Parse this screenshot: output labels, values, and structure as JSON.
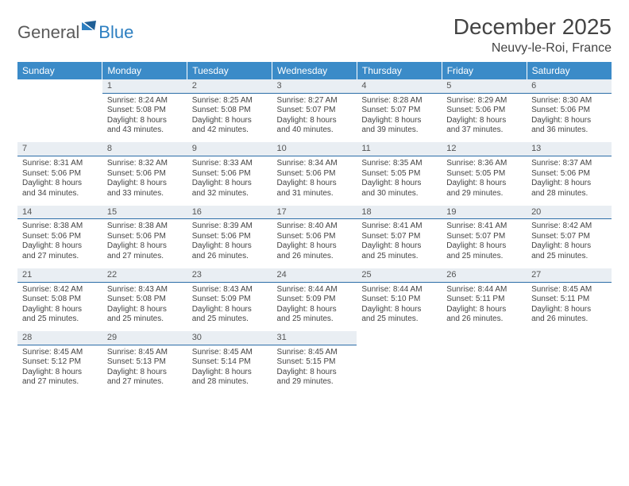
{
  "brand": {
    "general": "General",
    "blue": "Blue"
  },
  "title": "December 2025",
  "location": "Neuvy-le-Roi, France",
  "columns": [
    "Sunday",
    "Monday",
    "Tuesday",
    "Wednesday",
    "Thursday",
    "Friday",
    "Saturday"
  ],
  "colors": {
    "header_bg": "#3b8bc8",
    "daynum_bg": "#e9eef3",
    "daynum_border": "#2d6ea8",
    "brand_blue": "#2d7fc1"
  },
  "weeks": [
    [
      null,
      {
        "n": "1",
        "sr": "Sunrise: 8:24 AM",
        "ss": "Sunset: 5:08 PM",
        "d1": "Daylight: 8 hours",
        "d2": "and 43 minutes."
      },
      {
        "n": "2",
        "sr": "Sunrise: 8:25 AM",
        "ss": "Sunset: 5:08 PM",
        "d1": "Daylight: 8 hours",
        "d2": "and 42 minutes."
      },
      {
        "n": "3",
        "sr": "Sunrise: 8:27 AM",
        "ss": "Sunset: 5:07 PM",
        "d1": "Daylight: 8 hours",
        "d2": "and 40 minutes."
      },
      {
        "n": "4",
        "sr": "Sunrise: 8:28 AM",
        "ss": "Sunset: 5:07 PM",
        "d1": "Daylight: 8 hours",
        "d2": "and 39 minutes."
      },
      {
        "n": "5",
        "sr": "Sunrise: 8:29 AM",
        "ss": "Sunset: 5:06 PM",
        "d1": "Daylight: 8 hours",
        "d2": "and 37 minutes."
      },
      {
        "n": "6",
        "sr": "Sunrise: 8:30 AM",
        "ss": "Sunset: 5:06 PM",
        "d1": "Daylight: 8 hours",
        "d2": "and 36 minutes."
      }
    ],
    [
      {
        "n": "7",
        "sr": "Sunrise: 8:31 AM",
        "ss": "Sunset: 5:06 PM",
        "d1": "Daylight: 8 hours",
        "d2": "and 34 minutes."
      },
      {
        "n": "8",
        "sr": "Sunrise: 8:32 AM",
        "ss": "Sunset: 5:06 PM",
        "d1": "Daylight: 8 hours",
        "d2": "and 33 minutes."
      },
      {
        "n": "9",
        "sr": "Sunrise: 8:33 AM",
        "ss": "Sunset: 5:06 PM",
        "d1": "Daylight: 8 hours",
        "d2": "and 32 minutes."
      },
      {
        "n": "10",
        "sr": "Sunrise: 8:34 AM",
        "ss": "Sunset: 5:06 PM",
        "d1": "Daylight: 8 hours",
        "d2": "and 31 minutes."
      },
      {
        "n": "11",
        "sr": "Sunrise: 8:35 AM",
        "ss": "Sunset: 5:05 PM",
        "d1": "Daylight: 8 hours",
        "d2": "and 30 minutes."
      },
      {
        "n": "12",
        "sr": "Sunrise: 8:36 AM",
        "ss": "Sunset: 5:05 PM",
        "d1": "Daylight: 8 hours",
        "d2": "and 29 minutes."
      },
      {
        "n": "13",
        "sr": "Sunrise: 8:37 AM",
        "ss": "Sunset: 5:06 PM",
        "d1": "Daylight: 8 hours",
        "d2": "and 28 minutes."
      }
    ],
    [
      {
        "n": "14",
        "sr": "Sunrise: 8:38 AM",
        "ss": "Sunset: 5:06 PM",
        "d1": "Daylight: 8 hours",
        "d2": "and 27 minutes."
      },
      {
        "n": "15",
        "sr": "Sunrise: 8:38 AM",
        "ss": "Sunset: 5:06 PM",
        "d1": "Daylight: 8 hours",
        "d2": "and 27 minutes."
      },
      {
        "n": "16",
        "sr": "Sunrise: 8:39 AM",
        "ss": "Sunset: 5:06 PM",
        "d1": "Daylight: 8 hours",
        "d2": "and 26 minutes."
      },
      {
        "n": "17",
        "sr": "Sunrise: 8:40 AM",
        "ss": "Sunset: 5:06 PM",
        "d1": "Daylight: 8 hours",
        "d2": "and 26 minutes."
      },
      {
        "n": "18",
        "sr": "Sunrise: 8:41 AM",
        "ss": "Sunset: 5:07 PM",
        "d1": "Daylight: 8 hours",
        "d2": "and 25 minutes."
      },
      {
        "n": "19",
        "sr": "Sunrise: 8:41 AM",
        "ss": "Sunset: 5:07 PM",
        "d1": "Daylight: 8 hours",
        "d2": "and 25 minutes."
      },
      {
        "n": "20",
        "sr": "Sunrise: 8:42 AM",
        "ss": "Sunset: 5:07 PM",
        "d1": "Daylight: 8 hours",
        "d2": "and 25 minutes."
      }
    ],
    [
      {
        "n": "21",
        "sr": "Sunrise: 8:42 AM",
        "ss": "Sunset: 5:08 PM",
        "d1": "Daylight: 8 hours",
        "d2": "and 25 minutes."
      },
      {
        "n": "22",
        "sr": "Sunrise: 8:43 AM",
        "ss": "Sunset: 5:08 PM",
        "d1": "Daylight: 8 hours",
        "d2": "and 25 minutes."
      },
      {
        "n": "23",
        "sr": "Sunrise: 8:43 AM",
        "ss": "Sunset: 5:09 PM",
        "d1": "Daylight: 8 hours",
        "d2": "and 25 minutes."
      },
      {
        "n": "24",
        "sr": "Sunrise: 8:44 AM",
        "ss": "Sunset: 5:09 PM",
        "d1": "Daylight: 8 hours",
        "d2": "and 25 minutes."
      },
      {
        "n": "25",
        "sr": "Sunrise: 8:44 AM",
        "ss": "Sunset: 5:10 PM",
        "d1": "Daylight: 8 hours",
        "d2": "and 25 minutes."
      },
      {
        "n": "26",
        "sr": "Sunrise: 8:44 AM",
        "ss": "Sunset: 5:11 PM",
        "d1": "Daylight: 8 hours",
        "d2": "and 26 minutes."
      },
      {
        "n": "27",
        "sr": "Sunrise: 8:45 AM",
        "ss": "Sunset: 5:11 PM",
        "d1": "Daylight: 8 hours",
        "d2": "and 26 minutes."
      }
    ],
    [
      {
        "n": "28",
        "sr": "Sunrise: 8:45 AM",
        "ss": "Sunset: 5:12 PM",
        "d1": "Daylight: 8 hours",
        "d2": "and 27 minutes."
      },
      {
        "n": "29",
        "sr": "Sunrise: 8:45 AM",
        "ss": "Sunset: 5:13 PM",
        "d1": "Daylight: 8 hours",
        "d2": "and 27 minutes."
      },
      {
        "n": "30",
        "sr": "Sunrise: 8:45 AM",
        "ss": "Sunset: 5:14 PM",
        "d1": "Daylight: 8 hours",
        "d2": "and 28 minutes."
      },
      {
        "n": "31",
        "sr": "Sunrise: 8:45 AM",
        "ss": "Sunset: 5:15 PM",
        "d1": "Daylight: 8 hours",
        "d2": "and 29 minutes."
      },
      null,
      null,
      null
    ]
  ]
}
